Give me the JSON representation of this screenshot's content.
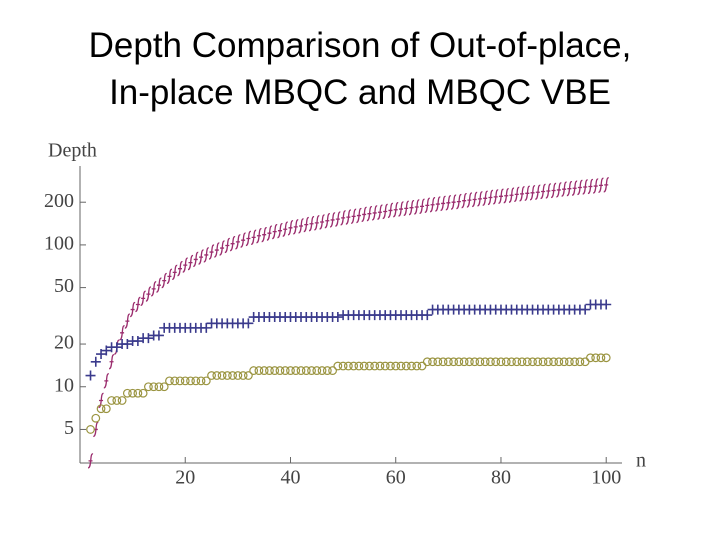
{
  "chart_data": {
    "type": "scatter",
    "title": [
      "Depth Comparison of Out-of-place,",
      "In-place MBQC and MBQC VBE"
    ],
    "y_label": "Depth",
    "x_label": "n",
    "log_y": true,
    "xlim": [
      0,
      103
    ],
    "xticks": [
      20,
      40,
      60,
      80,
      100
    ],
    "ylim": [
      2.9,
      360
    ],
    "yticks": [
      5,
      10,
      20,
      50,
      100,
      200
    ],
    "x": [
      2,
      3,
      4,
      5,
      6,
      7,
      8,
      9,
      10,
      11,
      12,
      13,
      14,
      15,
      16,
      17,
      18,
      19,
      20,
      21,
      22,
      23,
      24,
      25,
      26,
      27,
      28,
      29,
      30,
      31,
      32,
      33,
      34,
      35,
      36,
      37,
      38,
      39,
      40,
      41,
      42,
      43,
      44,
      45,
      46,
      47,
      48,
      49,
      50,
      51,
      52,
      53,
      54,
      55,
      56,
      57,
      58,
      59,
      60,
      61,
      62,
      63,
      64,
      65,
      66,
      67,
      68,
      69,
      70,
      71,
      72,
      73,
      74,
      75,
      76,
      77,
      78,
      79,
      80,
      81,
      82,
      83,
      84,
      85,
      86,
      87,
      88,
      89,
      90,
      91,
      92,
      93,
      94,
      95,
      96,
      97,
      98,
      99,
      100
    ],
    "series": [
      {
        "color": "#9b2d6e",
        "marker": "hook",
        "values": [
          3,
          5,
          8,
          11,
          15,
          19,
          24,
          29,
          35,
          38,
          42,
          45,
          49,
          52,
          56,
          60,
          64,
          68,
          72,
          75,
          79,
          82,
          85,
          89,
          92,
          95,
          99,
          102,
          105,
          108,
          111,
          113,
          116,
          118,
          121,
          124,
          126,
          129,
          132,
          134,
          136,
          139,
          141,
          143,
          145,
          148,
          150,
          152,
          155,
          157,
          159,
          161,
          164,
          166,
          168,
          170,
          172,
          175,
          177,
          179,
          181,
          183,
          185,
          187,
          190,
          192,
          194,
          196,
          198,
          200,
          202,
          205,
          207,
          209,
          211,
          213,
          216,
          218,
          220,
          222,
          224,
          227,
          229,
          231,
          233,
          235,
          238,
          240,
          242,
          244,
          247,
          249,
          251,
          254,
          256,
          258,
          260,
          263,
          265
        ]
      },
      {
        "color": "#3a3a8c",
        "marker": "plus",
        "values": [
          12,
          15,
          17,
          18,
          19,
          19,
          20,
          20,
          21,
          21,
          22,
          22,
          23,
          23,
          26,
          26,
          26,
          26,
          26,
          26,
          26,
          26,
          26,
          28,
          28,
          28,
          28,
          28,
          28,
          28,
          28,
          31,
          31,
          31,
          31,
          31,
          31,
          31,
          31,
          31,
          31,
          31,
          31,
          31,
          31,
          31,
          31,
          31,
          32,
          32,
          32,
          32,
          32,
          32,
          32,
          32,
          32,
          32,
          32,
          32,
          32,
          32,
          32,
          32,
          32,
          35,
          35,
          35,
          35,
          35,
          35,
          35,
          35,
          35,
          35,
          35,
          35,
          35,
          35,
          35,
          35,
          35,
          35,
          35,
          35,
          35,
          35,
          35,
          35,
          35,
          35,
          35,
          35,
          35,
          35,
          38,
          38,
          38,
          38
        ]
      },
      {
        "color": "#9a9440",
        "marker": "circle",
        "values": [
          5,
          6,
          7,
          7,
          8,
          8,
          8,
          9,
          9,
          9,
          9,
          10,
          10,
          10,
          10,
          11,
          11,
          11,
          11,
          11,
          11,
          11,
          11,
          12,
          12,
          12,
          12,
          12,
          12,
          12,
          12,
          13,
          13,
          13,
          13,
          13,
          13,
          13,
          13,
          13,
          13,
          13,
          13,
          13,
          13,
          13,
          13,
          14,
          14,
          14,
          14,
          14,
          14,
          14,
          14,
          14,
          14,
          14,
          14,
          14,
          14,
          14,
          14,
          14,
          15,
          15,
          15,
          15,
          15,
          15,
          15,
          15,
          15,
          15,
          15,
          15,
          15,
          15,
          15,
          15,
          15,
          15,
          15,
          15,
          15,
          15,
          15,
          15,
          15,
          15,
          15,
          15,
          15,
          15,
          15,
          16,
          16,
          16,
          16
        ]
      }
    ]
  }
}
